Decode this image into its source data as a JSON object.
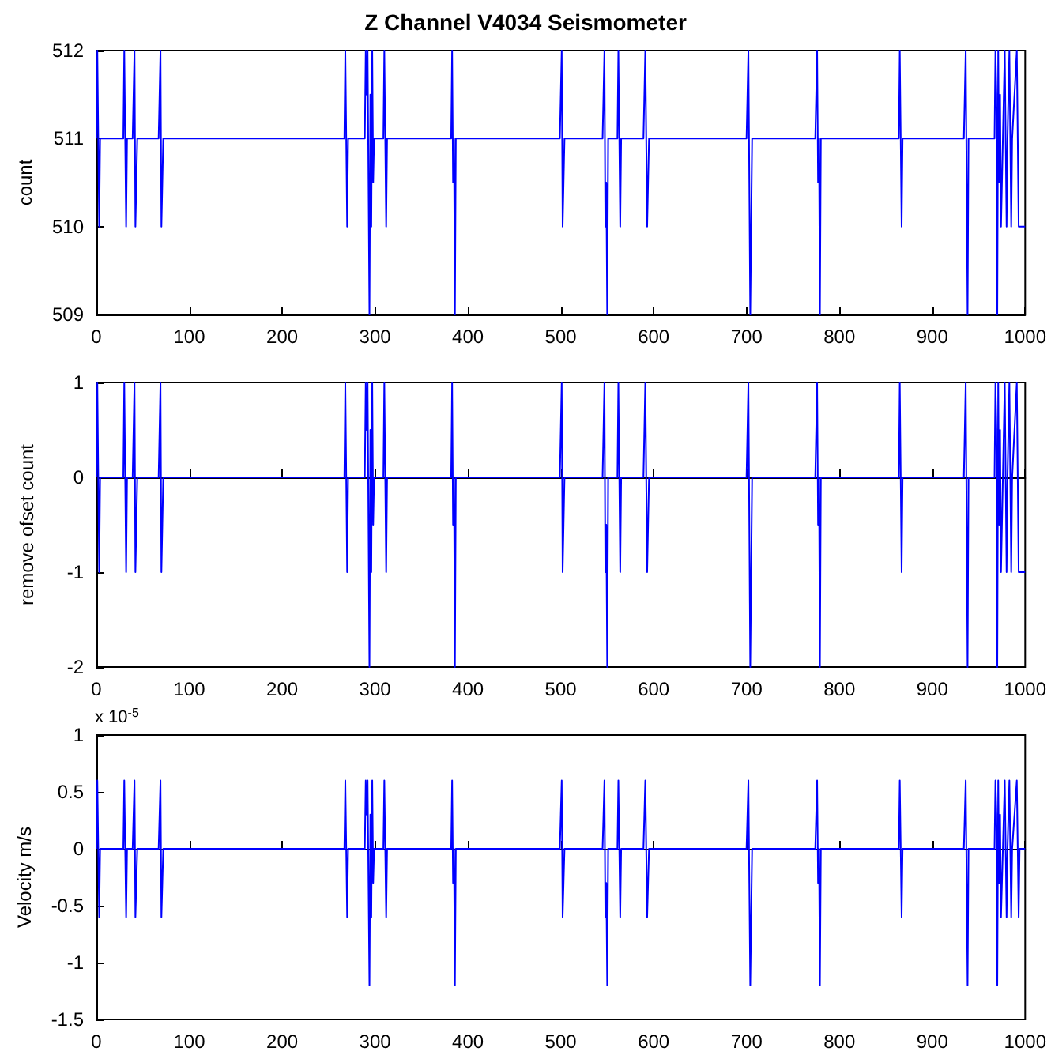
{
  "chart_data": [
    {
      "type": "line",
      "title": "Z Channel V4034 Seismometer",
      "ylabel": "count",
      "x": [
        0,
        1,
        2,
        3,
        4,
        29,
        30,
        31,
        32,
        33,
        39,
        40,
        41,
        42,
        43,
        44,
        67,
        68,
        69,
        70,
        71,
        72,
        267,
        268,
        269,
        270,
        271,
        289,
        290,
        291,
        292,
        293,
        294,
        295,
        296,
        297,
        298,
        299,
        309,
        310,
        311,
        312,
        313,
        382,
        383,
        384,
        385,
        386,
        387,
        499,
        500,
        501,
        502,
        503,
        504,
        545,
        546,
        547,
        548,
        549,
        550,
        551,
        561,
        562,
        563,
        564,
        565,
        589,
        590,
        591,
        592,
        593,
        594,
        595,
        700,
        701,
        702,
        703,
        704,
        705,
        706,
        774,
        775,
        776,
        777,
        778,
        779,
        780,
        864,
        865,
        866,
        867,
        868,
        934,
        935,
        936,
        937,
        938,
        939,
        967,
        968,
        969,
        970,
        971,
        972,
        973,
        974,
        975,
        976,
        978,
        979,
        980,
        981,
        983,
        984,
        985,
        986,
        991,
        992,
        993,
        994,
        1000
      ],
      "series": [
        {
          "color": "#0000ff",
          "values": [
            511,
            512,
            511,
            510,
            511,
            511,
            512,
            511,
            510,
            511,
            511,
            511.5,
            512,
            510,
            510.5,
            511,
            511,
            511.5,
            512,
            510,
            510.5,
            511,
            511,
            512,
            511,
            510,
            511,
            511,
            512,
            511.5,
            512,
            510.5,
            509,
            511.5,
            510,
            512,
            510.5,
            511,
            511,
            512,
            511,
            510,
            511,
            511,
            512,
            510.5,
            511,
            509,
            511,
            511,
            511.5,
            512,
            510,
            510.5,
            511,
            511,
            511.5,
            512,
            510,
            510.5,
            509,
            511,
            511,
            512,
            511,
            510,
            511,
            511,
            511.5,
            512,
            511,
            510,
            510.5,
            511,
            511,
            511.5,
            512,
            510.5,
            509,
            510,
            511,
            511,
            511.5,
            512,
            510.5,
            511,
            509,
            511,
            511,
            512,
            511,
            510,
            511,
            511,
            511.5,
            512,
            510.5,
            509,
            511,
            511,
            512,
            511.5,
            509,
            512,
            510.5,
            511.5,
            510,
            510.5,
            511,
            512,
            511,
            510,
            511,
            512,
            511,
            510,
            511,
            512,
            511,
            510,
            510,
            510
          ]
        }
      ],
      "xlim": [
        0,
        1000
      ],
      "xticks": [
        0,
        100,
        200,
        300,
        400,
        500,
        600,
        700,
        800,
        900,
        1000
      ],
      "ylim": [
        509,
        512
      ],
      "yticks": [
        509,
        510,
        511,
        512
      ]
    },
    {
      "type": "line",
      "ylabel": "remove ofset count",
      "x": [
        0,
        1,
        2,
        3,
        4,
        29,
        30,
        31,
        32,
        33,
        39,
        40,
        41,
        42,
        43,
        44,
        67,
        68,
        69,
        70,
        71,
        72,
        267,
        268,
        269,
        270,
        271,
        289,
        290,
        291,
        292,
        293,
        294,
        295,
        296,
        297,
        298,
        299,
        309,
        310,
        311,
        312,
        313,
        382,
        383,
        384,
        385,
        386,
        387,
        499,
        500,
        501,
        502,
        503,
        504,
        545,
        546,
        547,
        548,
        549,
        550,
        551,
        561,
        562,
        563,
        564,
        565,
        589,
        590,
        591,
        592,
        593,
        594,
        595,
        700,
        701,
        702,
        703,
        704,
        705,
        706,
        774,
        775,
        776,
        777,
        778,
        779,
        780,
        864,
        865,
        866,
        867,
        868,
        934,
        935,
        936,
        937,
        938,
        939,
        967,
        968,
        969,
        970,
        971,
        972,
        973,
        974,
        975,
        976,
        978,
        979,
        980,
        981,
        983,
        984,
        985,
        986,
        991,
        992,
        993,
        994,
        1000
      ],
      "series": [
        {
          "color": "#0000ff",
          "values": [
            0,
            1,
            0,
            -1,
            0,
            0,
            1,
            0,
            -1,
            0,
            0,
            0.5,
            1,
            -1,
            -0.5,
            0,
            0,
            0.5,
            1,
            -1,
            -0.5,
            0,
            0,
            1,
            0,
            -1,
            0,
            0,
            1,
            0.5,
            1,
            -0.5,
            -2,
            0.5,
            -1,
            1,
            -0.5,
            0,
            0,
            1,
            0,
            -1,
            0,
            0,
            1,
            -0.5,
            0,
            -2,
            0,
            0,
            0.5,
            1,
            -1,
            -0.5,
            0,
            0,
            0.5,
            1,
            -1,
            -0.5,
            -2,
            0,
            0,
            1,
            0,
            -1,
            0,
            0,
            0.5,
            1,
            0,
            -1,
            -0.5,
            0,
            0,
            0.5,
            1,
            -0.5,
            -2,
            -1,
            0,
            0,
            0.5,
            1,
            -0.5,
            0,
            -2,
            0,
            0,
            1,
            0,
            -1,
            0,
            0,
            0.5,
            1,
            -0.5,
            -2,
            0,
            0,
            1,
            0.5,
            -2,
            1,
            -0.5,
            0.5,
            -1,
            -0.5,
            0,
            1,
            0,
            -1,
            0,
            1,
            0,
            -1,
            0,
            1,
            0,
            -1,
            -1,
            -1
          ]
        }
      ],
      "xlim": [
        0,
        1000
      ],
      "xticks": [
        0,
        100,
        200,
        300,
        400,
        500,
        600,
        700,
        800,
        900,
        1000
      ],
      "ylim": [
        -2,
        1
      ],
      "yticks": [
        -2,
        -1,
        0,
        1
      ]
    },
    {
      "type": "line",
      "ylabel": "Velocity m/s",
      "annotations": [
        "x 10$^{-5}$"
      ],
      "x": [
        0,
        1,
        2,
        3,
        4,
        29,
        30,
        31,
        32,
        33,
        39,
        40,
        41,
        42,
        43,
        44,
        67,
        68,
        69,
        70,
        71,
        72,
        267,
        268,
        269,
        270,
        271,
        289,
        290,
        291,
        292,
        293,
        294,
        295,
        296,
        297,
        298,
        299,
        309,
        310,
        311,
        312,
        313,
        382,
        383,
        384,
        385,
        386,
        387,
        499,
        500,
        501,
        502,
        503,
        504,
        545,
        546,
        547,
        548,
        549,
        550,
        551,
        561,
        562,
        563,
        564,
        565,
        589,
        590,
        591,
        592,
        593,
        594,
        595,
        700,
        701,
        702,
        703,
        704,
        705,
        706,
        774,
        775,
        776,
        777,
        778,
        779,
        780,
        864,
        865,
        866,
        867,
        868,
        934,
        935,
        936,
        937,
        938,
        939,
        967,
        968,
        969,
        970,
        971,
        972,
        973,
        974,
        975,
        976,
        978,
        979,
        980,
        981,
        983,
        984,
        985,
        986,
        991,
        992,
        993,
        994,
        1000
      ],
      "series": [
        {
          "color": "#0000ff",
          "values": [
            0,
            0.6,
            0,
            -0.6,
            0,
            0,
            0.6,
            0,
            -0.6,
            0,
            0,
            0.3,
            0.6,
            -0.6,
            -0.3,
            0,
            0,
            0.3,
            0.6,
            -0.6,
            -0.3,
            0,
            0,
            0.6,
            0,
            -0.6,
            0,
            0,
            0.6,
            0.3,
            0.6,
            -0.3,
            -1.2,
            0.3,
            -0.6,
            0.6,
            -0.3,
            0,
            0,
            0.6,
            0,
            -0.6,
            0,
            0,
            0.6,
            -0.3,
            0,
            -1.2,
            0,
            0,
            0.3,
            0.6,
            -0.6,
            -0.3,
            0,
            0,
            0.3,
            0.6,
            -0.6,
            -0.3,
            -1.2,
            0,
            0,
            0.6,
            0,
            -0.6,
            0,
            0,
            0.3,
            0.6,
            0,
            -0.6,
            -0.3,
            0,
            0,
            0.3,
            0.6,
            -0.3,
            -1.2,
            -0.6,
            0,
            0,
            0.3,
            0.6,
            -0.3,
            0,
            -1.2,
            0,
            0,
            0.6,
            0,
            -0.6,
            0,
            0,
            0.3,
            0.6,
            -0.3,
            -1.2,
            0,
            0,
            0.6,
            0.3,
            -1.2,
            0.6,
            -0.3,
            0.3,
            -0.6,
            -0.3,
            0,
            0.6,
            0,
            -0.6,
            0,
            0.6,
            0,
            -0.6,
            0,
            0.6,
            0,
            -0.6,
            0,
            0
          ]
        }
      ],
      "xlim": [
        0,
        1000
      ],
      "xticks": [
        0,
        100,
        200,
        300,
        400,
        500,
        600,
        700,
        800,
        900,
        1000
      ],
      "ylim": [
        -1.5,
        1
      ],
      "yticks": [
        -1.5,
        -1,
        -0.5,
        0,
        0.5,
        1
      ]
    }
  ]
}
